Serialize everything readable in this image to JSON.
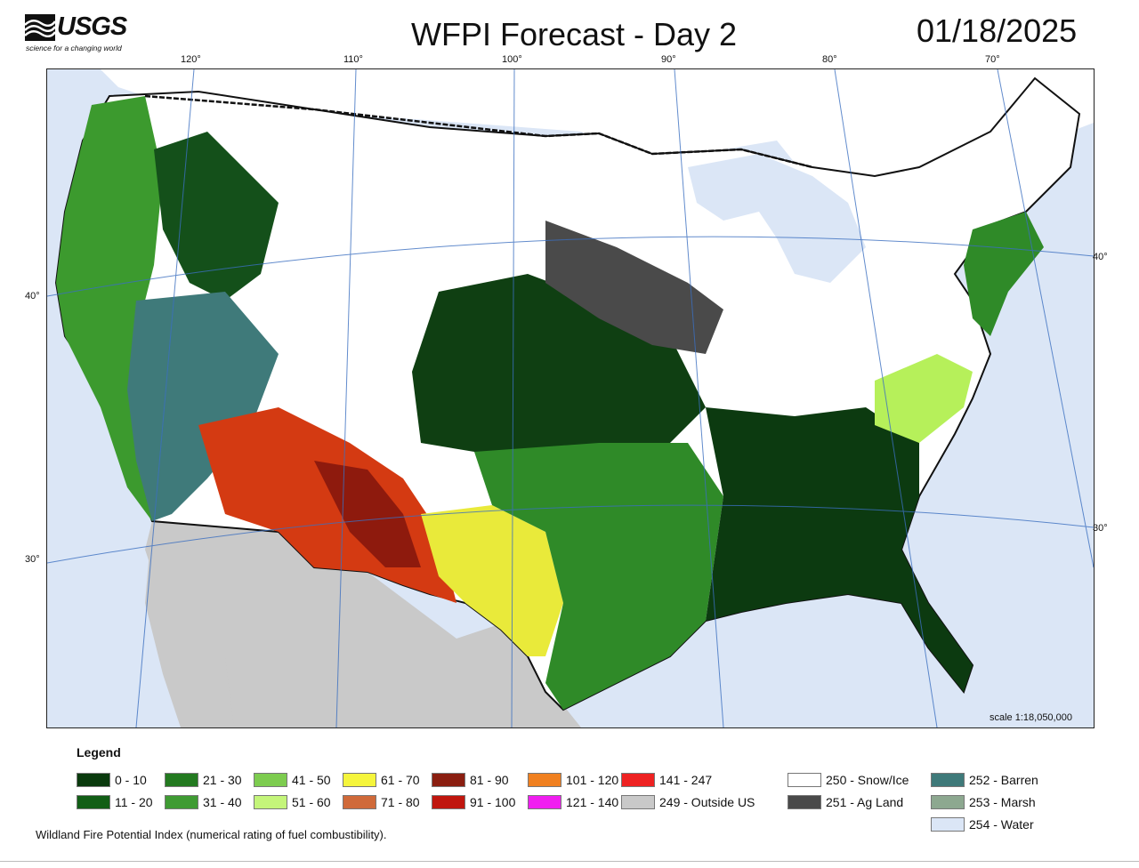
{
  "header": {
    "logo_name": "USGS",
    "logo_tagline": "science for a changing world",
    "title": "WFPI Forecast - Day 2",
    "date": "01/18/2025"
  },
  "map": {
    "lon_labels": [
      "120°",
      "110°",
      "100°",
      "90°",
      "80°",
      "70°"
    ],
    "lat_labels_left": [
      "40°",
      "30°"
    ],
    "lat_labels_right": [
      "40°",
      "30°"
    ],
    "scale": "scale 1:18,050,000"
  },
  "legend": {
    "title": "Legend",
    "items": [
      {
        "label": "0 - 10",
        "color": "#0a3a0d"
      },
      {
        "label": "11 - 20",
        "color": "#125e16"
      },
      {
        "label": "21 - 30",
        "color": "#237a20"
      },
      {
        "label": "31 - 40",
        "color": "#3f9b33"
      },
      {
        "label": "41 - 50",
        "color": "#7dcc4f"
      },
      {
        "label": "51 - 60",
        "color": "#c4f57a"
      },
      {
        "label": "61 - 70",
        "color": "#f5f53c"
      },
      {
        "label": "71 - 80",
        "color": "#d06a3a"
      },
      {
        "label": "81 - 90",
        "color": "#8a1e10"
      },
      {
        "label": "91 - 100",
        "color": "#c0160e"
      },
      {
        "label": "101 - 120",
        "color": "#f08020"
      },
      {
        "label": "121 - 140",
        "color": "#f01ef0"
      },
      {
        "label": "141 - 247",
        "color": "#ee2222"
      },
      {
        "label": "249 - Outside US",
        "color": "#c9c9c9"
      },
      {
        "label": "250 - Snow/Ice",
        "color": "#ffffff"
      },
      {
        "label": "251 - Ag Land",
        "color": "#4a4a4a"
      },
      {
        "label": "252 - Barren",
        "color": "#3f7a7a"
      },
      {
        "label": "253 - Marsh",
        "color": "#8da890"
      },
      {
        "label": "254 - Water",
        "color": "#dbe6f6"
      }
    ]
  },
  "footer": {
    "caption": "Wildland Fire Potential Index (numerical rating of fuel combustibility)."
  }
}
